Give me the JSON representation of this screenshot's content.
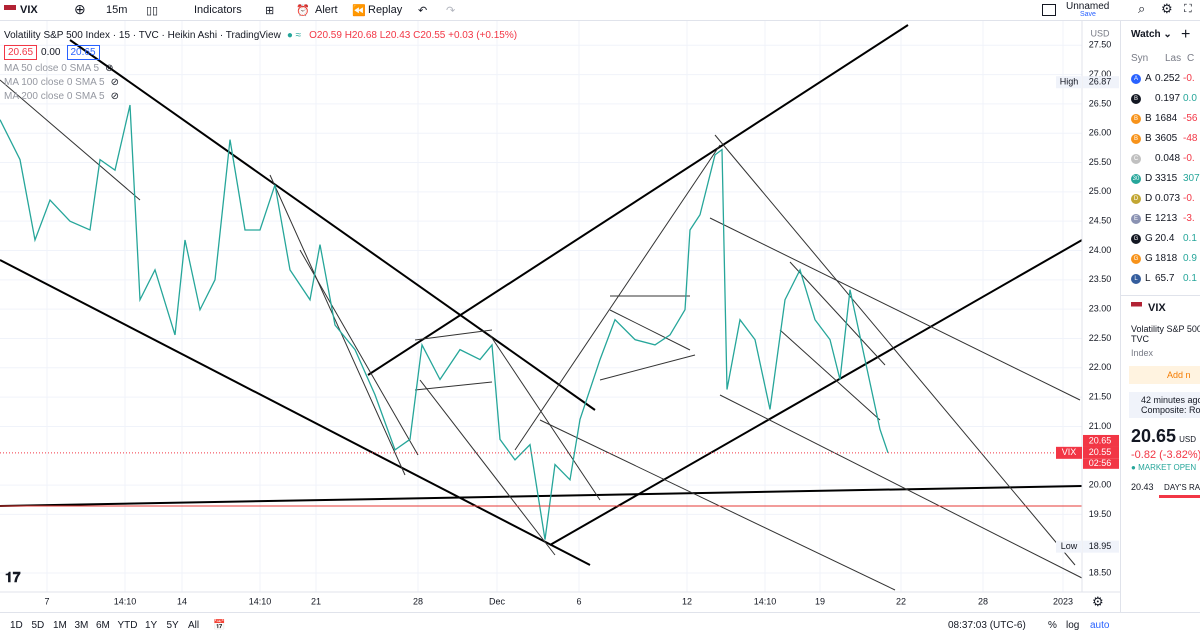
{
  "toolbar": {
    "symbol": "VIX",
    "interval": "15m",
    "indicators": "Indicators",
    "alert": "Alert",
    "replay": "Replay",
    "layout_name": "Unnamed",
    "save": "Save"
  },
  "legend": {
    "title": "Volatility S&P 500 Index · 15 · TVC · Heikin Ashi · TradingView",
    "ohlc": "O20.59 H20.68 L20.43 C20.55 +0.03 (+0.15%)",
    "bid": "20.65",
    "spread": "0.00",
    "ask": "20.65",
    "indicators": [
      "MA 50 close 0 SMA 5",
      "MA 100 close 0 SMA 5",
      "MA 200 close 0 SMA 5"
    ]
  },
  "chart_data": {
    "type": "line",
    "color": "#26a69a",
    "x": [
      0,
      20,
      35,
      50,
      70,
      90,
      100,
      115,
      130,
      140,
      155,
      175,
      185,
      200,
      215,
      230,
      245,
      260,
      275,
      290,
      310,
      320,
      335,
      355,
      375,
      395,
      410,
      422,
      440,
      460,
      480,
      492,
      500,
      515,
      530,
      545,
      555,
      570,
      580,
      600,
      615,
      635,
      655,
      670,
      685,
      690,
      700,
      715,
      722,
      727,
      740,
      755,
      770,
      785,
      800,
      815,
      830,
      840,
      850,
      865,
      880,
      888
    ],
    "values": [
      26.23,
      25.55,
      24.18,
      24.86,
      24.5,
      24.35,
      25.55,
      25.37,
      26.48,
      23.16,
      23.67,
      22.56,
      24.18,
      22.99,
      23.5,
      25.89,
      24.35,
      24.35,
      25.12,
      23.67,
      23.16,
      24.1,
      22.73,
      22.31,
      21.54,
      20.6,
      20.78,
      22.39,
      21.8,
      22.31,
      22.14,
      22.39,
      20.78,
      20.43,
      20.69,
      19.07,
      20.35,
      20.09,
      21.12,
      22.14,
      22.82,
      22.48,
      22.39,
      22.56,
      22.99,
      24.35,
      24.61,
      25.63,
      25.72,
      21.63,
      22.82,
      22.48,
      21.29,
      23.16,
      23.67,
      22.82,
      22.48,
      21.8,
      23.33,
      22.14,
      20.95,
      20.55
    ],
    "xlim": [
      0,
      1082
    ],
    "ylim": [
      17.87,
      27.76
    ],
    "xticks": [
      {
        "value": 47,
        "label": "7"
      },
      {
        "value": 125,
        "label": "14:10"
      },
      {
        "value": 182,
        "label": "14"
      },
      {
        "value": 260,
        "label": "14:10"
      },
      {
        "value": 316,
        "label": "21"
      },
      {
        "value": 418,
        "label": "28"
      },
      {
        "value": 497,
        "label": "Dec"
      },
      {
        "value": 579,
        "label": "6"
      },
      {
        "value": 687,
        "label": "12"
      },
      {
        "value": 765,
        "label": "14:10"
      },
      {
        "value": 820,
        "label": "19"
      },
      {
        "value": 901,
        "label": "22"
      },
      {
        "value": 983,
        "label": "28"
      },
      {
        "value": 1063,
        "label": "2023"
      }
    ],
    "yticks": [
      {
        "value": 18.5,
        "label": "18.50"
      },
      {
        "value": 19.5,
        "label": "19.50"
      },
      {
        "value": 20,
        "label": "20.00"
      },
      {
        "value": 21,
        "label": "21.00"
      },
      {
        "value": 21.5,
        "label": "21.50"
      },
      {
        "value": 22,
        "label": "22.00"
      },
      {
        "value": 22.5,
        "label": "22.50"
      },
      {
        "value": 23,
        "label": "23.00"
      },
      {
        "value": 23.5,
        "label": "23.50"
      },
      {
        "value": 24,
        "label": "24.00"
      },
      {
        "value": 24.5,
        "label": "24.50"
      },
      {
        "value": 25,
        "label": "25.00"
      },
      {
        "value": 25.5,
        "label": "25.50"
      },
      {
        "value": 26,
        "label": "26.00"
      },
      {
        "value": 26.5,
        "label": "26.50"
      },
      {
        "value": 27,
        "label": "27.00"
      },
      {
        "value": 27.5,
        "label": "27.50"
      }
    ],
    "currency": "USD",
    "high": {
      "label": "High",
      "value": 26.87
    },
    "low": {
      "label": "Low",
      "value": 18.95
    },
    "last": {
      "symbol": "VIX",
      "value": 20.55,
      "countdown": "02:56"
    },
    "ask_line": 20.65
  },
  "watchlist": {
    "title": "Watch",
    "columns": [
      "Syn",
      "Las",
      "C"
    ],
    "rows": [
      {
        "icon": "A",
        "sym": "A",
        "last": "0.252",
        "chg": "-0.",
        "c": "#2962ff"
      },
      {
        "icon": "B",
        "sym": "",
        "last": "0.197",
        "chg": "0.0",
        "c": "#131722"
      },
      {
        "icon": "B",
        "sym": "B",
        "last": "1684",
        "chg": "-56",
        "c": "#f7931a"
      },
      {
        "icon": "B",
        "sym": "B",
        "last": "3605",
        "chg": "-48",
        "c": "#f7931a"
      },
      {
        "icon": "C",
        "sym": "",
        "last": "0.048",
        "chg": "-0.",
        "c": "#c0c0c0"
      },
      {
        "icon": "30",
        "sym": "D",
        "last": "3315",
        "chg": "307",
        "c": "#26a69a"
      },
      {
        "icon": "D",
        "sym": "D",
        "last": "0.073",
        "chg": "-0.",
        "c": "#c2a633"
      },
      {
        "icon": "E",
        "sym": "E",
        "last": "1213",
        "chg": "-3.",
        "c": "#8a92b2"
      },
      {
        "icon": "G",
        "sym": "G",
        "last": "20.4",
        "chg": "0.1",
        "c": "#131722"
      },
      {
        "icon": "G",
        "sym": "G",
        "last": "1818",
        "chg": "0.9",
        "c": "#f7931a"
      },
      {
        "icon": "L",
        "sym": "L",
        "last": "65.7",
        "chg": "0.1",
        "c": "#345d9d"
      }
    ]
  },
  "detail": {
    "symbol": "VIX",
    "name": "Volatility S&P 500",
    "exchange": "TVC",
    "kind": "Index",
    "add": "Add n",
    "news_time": "42 minutes ago",
    "news": "Composite: Ro",
    "price": "20.65",
    "currency": "USD",
    "change": "-0.82 (-3.82%)",
    "status": "MARKET OPEN",
    "day_low": "20.43",
    "range": "DAY'S RAN"
  },
  "bottom": {
    "ranges": [
      "1D",
      "5D",
      "1M",
      "3M",
      "6M",
      "YTD",
      "1Y",
      "5Y",
      "All"
    ],
    "clock": "08:37:03 (UTC-6)",
    "percent": "%",
    "log": "log",
    "auto": "auto"
  }
}
